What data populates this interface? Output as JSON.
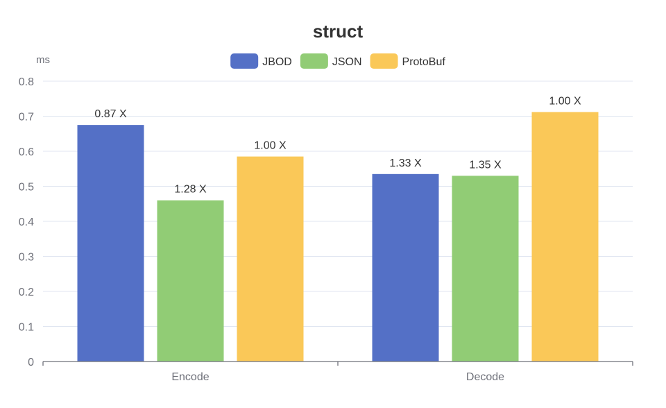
{
  "chart_data": {
    "type": "bar",
    "title": "struct",
    "ylabel": "ms",
    "xlabel": "",
    "categories": [
      "Encode",
      "Decode"
    ],
    "ylim": [
      0,
      0.8
    ],
    "yticks": [
      "0",
      "0.1",
      "0.2",
      "0.3",
      "0.4",
      "0.5",
      "0.6",
      "0.7",
      "0.8"
    ],
    "grid": true,
    "legend_position": "top-center",
    "series": [
      {
        "name": "JBOD",
        "color": "#5470c6",
        "values": [
          0.675,
          0.535
        ],
        "labels": [
          "0.87 X",
          "1.33 X"
        ]
      },
      {
        "name": "JSON",
        "color": "#91cc75",
        "values": [
          0.46,
          0.53
        ],
        "labels": [
          "1.28 X",
          "1.35 X"
        ]
      },
      {
        "name": "ProtoBuf",
        "color": "#fac858",
        "values": [
          0.585,
          0.712
        ],
        "labels": [
          "1.00 X",
          "1.00 X"
        ]
      }
    ]
  }
}
